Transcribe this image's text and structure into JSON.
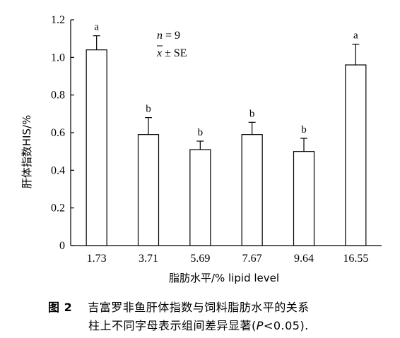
{
  "chart_data": {
    "type": "bar",
    "categories": [
      "1.73",
      "3.71",
      "5.69",
      "7.67",
      "9.64",
      "16.55"
    ],
    "series": [
      {
        "values": [
          1.04,
          0.59,
          0.51,
          0.59,
          0.5,
          0.96
        ],
        "errors": [
          0.075,
          0.09,
          0.045,
          0.065,
          0.07,
          0.11
        ],
        "letters": [
          "a",
          "b",
          "b",
          "b",
          "b",
          "a"
        ]
      }
    ],
    "xlabel": "脂肪水平/% lipid level",
    "ylabel": "肝体指数HIS/%",
    "ylim": [
      0,
      1.2
    ],
    "yticks": [
      "0",
      "0.2",
      "0.4",
      "0.6",
      "0.8",
      "1.0",
      "1.2"
    ],
    "grid": false,
    "annotation": {
      "line1_var": "n",
      "line1_rest": " = 9",
      "line2_var": "x",
      "line2_rest": " ± SE"
    }
  },
  "caption": {
    "fig_num": "图 2",
    "line1": "吉富罗非鱼肝体指数与饲料脂肪水平的关系",
    "line2_pre": "柱上不同字母表示组间差异显著(",
    "line2_var": "P",
    "line2_post": "<0.05)."
  }
}
